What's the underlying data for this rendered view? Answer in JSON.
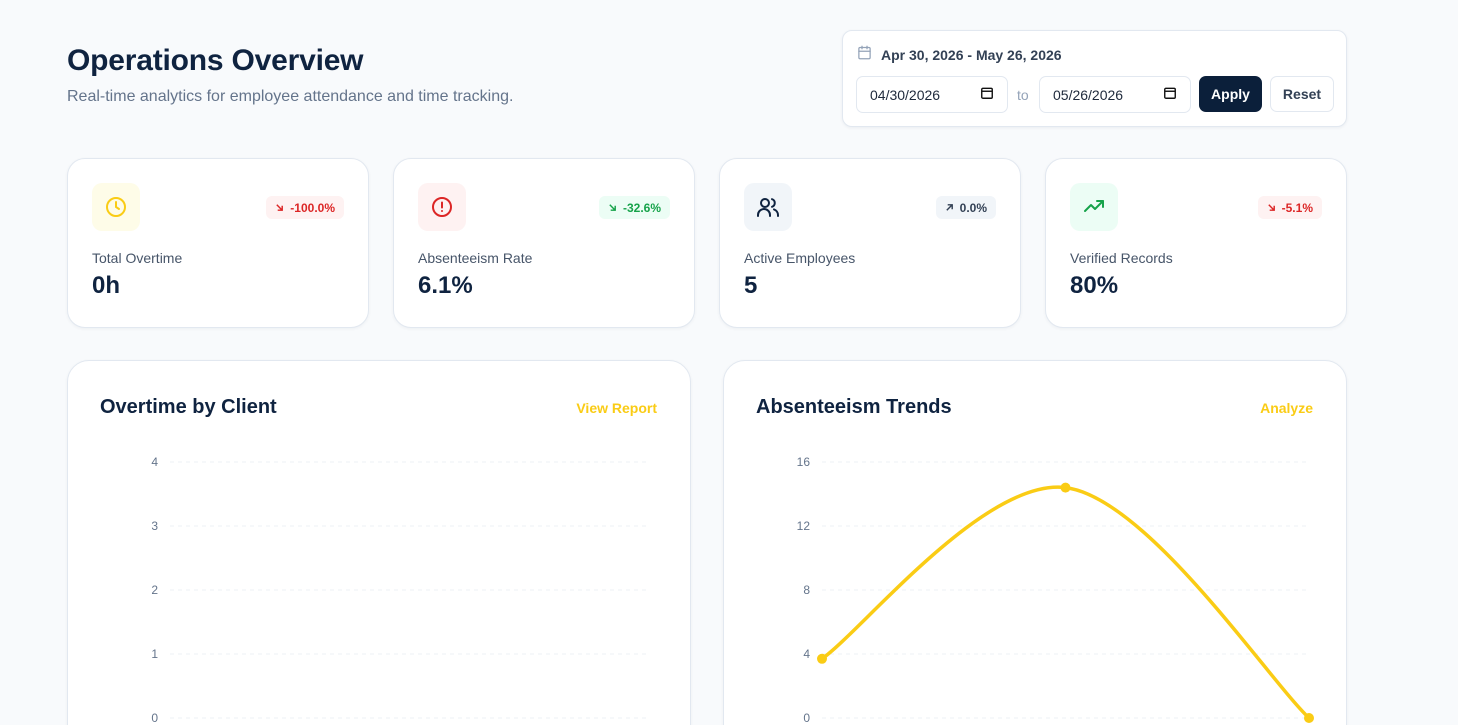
{
  "header": {
    "title": "Operations Overview",
    "subtitle": "Real-time analytics for employee attendance and time tracking."
  },
  "date_filter": {
    "range_label": "Apr 30, 2026 - May 26, 2026",
    "start_value": "04/30/2026",
    "end_value": "05/26/2026",
    "to_label": "to",
    "apply_label": "Apply",
    "reset_label": "Reset"
  },
  "kpis": [
    {
      "label": "Total Overtime",
      "value": "0h",
      "change": "-100.0%",
      "trend": "down",
      "icon": "clock-icon",
      "tone": "red"
    },
    {
      "label": "Absenteeism Rate",
      "value": "6.1%",
      "change": "-32.6%",
      "trend": "down",
      "icon": "alert-circle-icon",
      "tone": "green"
    },
    {
      "label": "Active Employees",
      "value": "5",
      "change": "0.0%",
      "trend": "up",
      "icon": "users-icon",
      "tone": "neutral"
    },
    {
      "label": "Verified Records",
      "value": "80%",
      "change": "-5.1%",
      "trend": "down",
      "icon": "trending-up-icon",
      "tone": "red"
    }
  ],
  "colors": {
    "accent": "#facc15",
    "navy": "#0b1f3a",
    "red": "#dc2626",
    "green": "#16a34a"
  },
  "charts": {
    "overtime": {
      "title": "Overtime by Client",
      "link": "View Report"
    },
    "absenteeism": {
      "title": "Absenteeism Trends",
      "link": "Analyze"
    }
  },
  "chart_data": [
    {
      "type": "bar",
      "title": "Overtime by Client",
      "categories": [],
      "values": [],
      "ylim": [
        0,
        4
      ],
      "yticks": [
        0,
        1,
        2,
        3,
        4
      ],
      "grid": true
    },
    {
      "type": "line",
      "title": "Absenteeism Trends",
      "x": [
        0,
        1,
        2
      ],
      "values": [
        3.7,
        14.4,
        0
      ],
      "ylim": [
        0,
        16
      ],
      "yticks": [
        0,
        4,
        8,
        12,
        16
      ],
      "grid": true,
      "color": "#facc15"
    }
  ]
}
